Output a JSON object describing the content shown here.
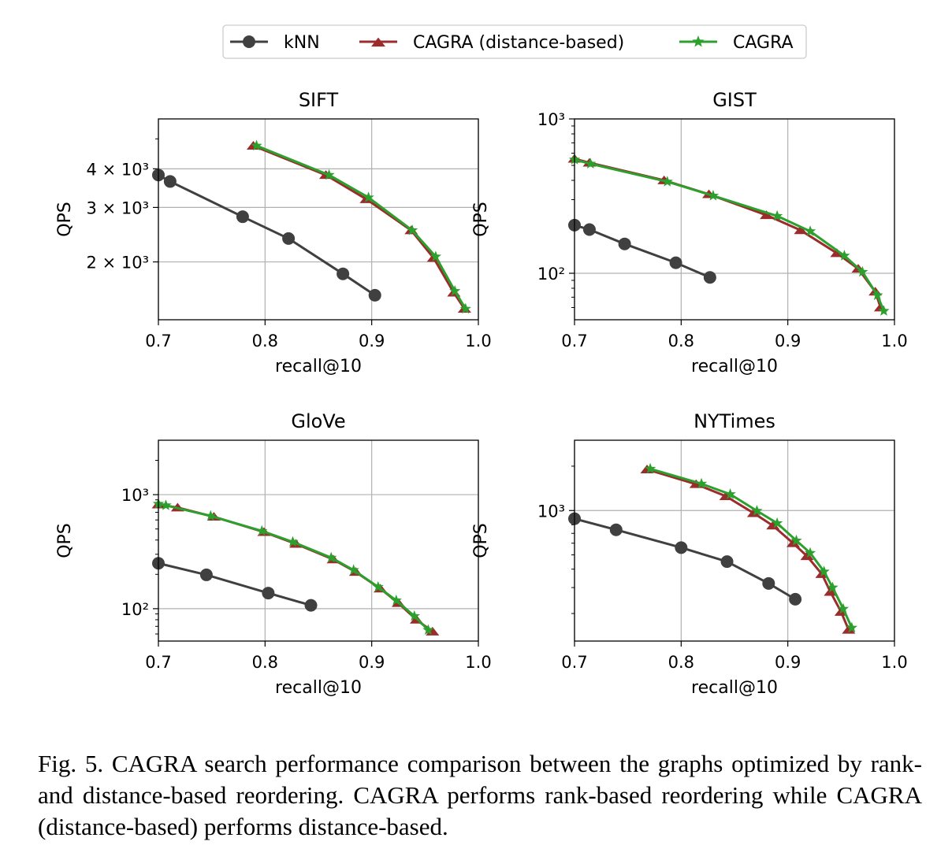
{
  "legend": {
    "entries": [
      {
        "label": "kNN",
        "color": "#404040",
        "marker": "circle"
      },
      {
        "label": "CAGRA (distance-based)",
        "color": "#9b2c2c",
        "marker": "triangle"
      },
      {
        "label": "CAGRA",
        "color": "#2ca02c",
        "marker": "star"
      }
    ]
  },
  "chart_data": [
    {
      "type": "line",
      "title": "SIFT",
      "xlabel": "recall@10",
      "ylabel": "QPS",
      "xlim": [
        0.7,
        1.0
      ],
      "ylim": [
        1300,
        5800
      ],
      "yscale": "log",
      "xticks": [
        "0.7",
        "0.8",
        "0.9",
        "1.0"
      ],
      "yticks": [
        {
          "value": 4000,
          "label": "4 × 10³"
        },
        {
          "value": 3000,
          "label": "3 × 10³"
        },
        {
          "value": 2000,
          "label": "2 × 10³"
        }
      ],
      "grid": true,
      "series": [
        {
          "name": "kNN",
          "x": [
            0.7,
            0.711,
            0.779,
            0.822,
            0.873,
            0.903
          ],
          "y": [
            3820,
            3640,
            2800,
            2380,
            1830,
            1560
          ]
        },
        {
          "name": "CAGRA (distance-based)",
          "x": [
            0.789,
            0.857,
            0.895,
            0.937,
            0.958,
            0.977,
            0.987
          ],
          "y": [
            4750,
            3820,
            3190,
            2530,
            2060,
            1590,
            1410
          ]
        },
        {
          "name": "CAGRA",
          "x": [
            0.792,
            0.86,
            0.897,
            0.938,
            0.96,
            0.978,
            0.988
          ],
          "y": [
            4750,
            3820,
            3230,
            2530,
            2080,
            1610,
            1410
          ]
        }
      ]
    },
    {
      "type": "line",
      "title": "GIST",
      "xlabel": "recall@10",
      "ylabel": "QPS",
      "xlim": [
        0.7,
        1.0
      ],
      "ylim": [
        50,
        1000
      ],
      "yscale": "log",
      "xticks": [
        "0.7",
        "0.8",
        "0.9",
        "1.0"
      ],
      "yticks": [
        {
          "value": 1000,
          "label": "10³"
        },
        {
          "value": 100,
          "label": "10²"
        }
      ],
      "grid": true,
      "series": [
        {
          "name": "kNN",
          "x": [
            0.7,
            0.714,
            0.747,
            0.795,
            0.827
          ],
          "y": [
            205,
            192,
            155,
            117,
            94
          ]
        },
        {
          "name": "CAGRA (distance-based)",
          "x": [
            0.7,
            0.714,
            0.784,
            0.826,
            0.88,
            0.912,
            0.946,
            0.966,
            0.982,
            0.987
          ],
          "y": [
            552,
            520,
            400,
            325,
            238,
            190,
            135,
            107,
            76,
            60
          ]
        },
        {
          "name": "CAGRA",
          "x": [
            0.7,
            0.715,
            0.787,
            0.83,
            0.89,
            0.921,
            0.953,
            0.97,
            0.984,
            0.99
          ],
          "y": [
            545,
            512,
            392,
            318,
            235,
            187,
            130,
            102,
            72,
            57
          ]
        }
      ]
    },
    {
      "type": "line",
      "title": "GloVe",
      "xlabel": "recall@10",
      "ylabel": "QPS",
      "xlim": [
        0.7,
        1.0
      ],
      "ylim": [
        52,
        3000
      ],
      "yscale": "log",
      "xticks": [
        "0.7",
        "0.8",
        "0.9",
        "1.0"
      ],
      "yticks": [
        {
          "value": 1000,
          "label": "10³"
        },
        {
          "value": 100,
          "label": "10²"
        }
      ],
      "grid": true,
      "series": [
        {
          "name": "kNN",
          "x": [
            0.7,
            0.745,
            0.803,
            0.843
          ],
          "y": [
            250,
            198,
            137,
            107
          ]
        },
        {
          "name": "CAGRA (distance-based)",
          "x": [
            0.7,
            0.718,
            0.752,
            0.799,
            0.829,
            0.864,
            0.885,
            0.908,
            0.925,
            0.942,
            0.957
          ],
          "y": [
            820,
            770,
            640,
            470,
            370,
            270,
            210,
            150,
            112,
            80,
            63
          ]
        },
        {
          "name": "CAGRA",
          "x": [
            0.7,
            0.707,
            0.749,
            0.797,
            0.826,
            0.862,
            0.883,
            0.906,
            0.923,
            0.94,
            0.953
          ],
          "y": [
            830,
            805,
            650,
            480,
            385,
            280,
            218,
            155,
            118,
            86,
            65
          ]
        }
      ]
    },
    {
      "type": "line",
      "title": "NYTimes",
      "xlabel": "recall@10",
      "ylabel": "QPS",
      "xlim": [
        0.7,
        1.0
      ],
      "ylim": [
        130,
        3000
      ],
      "yscale": "log",
      "xticks": [
        "0.7",
        "0.8",
        "0.9",
        "1.0"
      ],
      "yticks": [
        {
          "value": 1000,
          "label": "10³"
        }
      ],
      "grid": true,
      "series": [
        {
          "name": "kNN",
          "x": [
            0.7,
            0.739,
            0.8,
            0.843,
            0.882,
            0.907
          ],
          "y": [
            880,
            740,
            560,
            450,
            320,
            250
          ]
        },
        {
          "name": "CAGRA (distance-based)",
          "x": [
            0.768,
            0.814,
            0.842,
            0.868,
            0.886,
            0.905,
            0.918,
            0.932,
            0.94,
            0.95,
            0.957
          ],
          "y": [
            1900,
            1510,
            1250,
            960,
            790,
            600,
            490,
            370,
            280,
            205,
            155
          ]
        },
        {
          "name": "CAGRA",
          "x": [
            0.771,
            0.819,
            0.846,
            0.871,
            0.89,
            0.908,
            0.921,
            0.934,
            0.942,
            0.952,
            0.96
          ],
          "y": [
            1920,
            1520,
            1290,
            995,
            820,
            625,
            515,
            385,
            300,
            215,
            160
          ]
        }
      ]
    }
  ],
  "caption": {
    "text": "Fig. 5.    CAGRA search performance comparison between the graphs optimized by rank- and distance-based reordering. CAGRA performs rank-based reordering while CAGRA (distance-based) performs distance-based."
  }
}
